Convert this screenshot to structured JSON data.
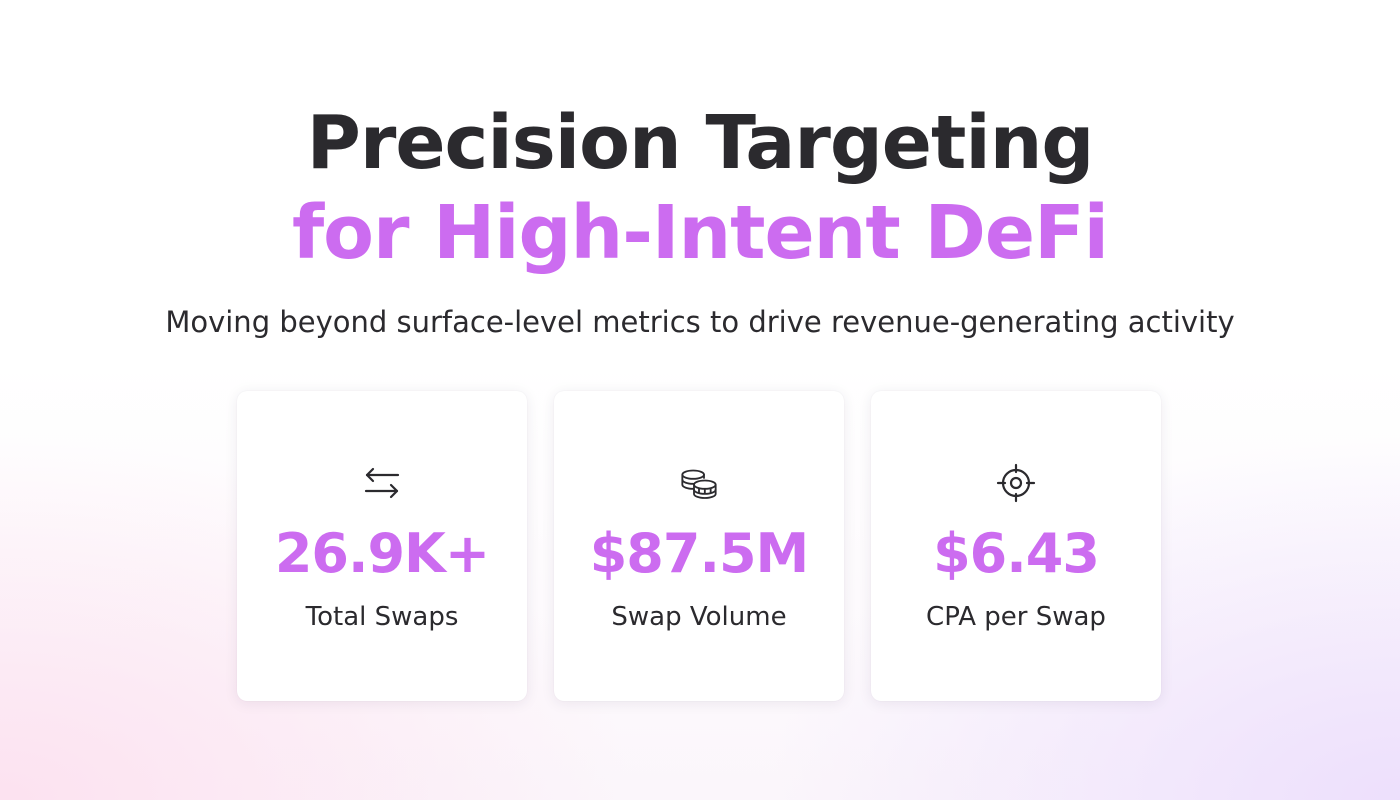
{
  "colors": {
    "accent": "#cc6cf0",
    "text_dark": "#2b2a2e",
    "card_background": "#ffffff"
  },
  "header": {
    "title_line_1": "Precision Targeting",
    "title_line_2": "for High-Intent DeFi",
    "subtitle": "Moving beyond surface-level metrics to drive revenue-generating activity"
  },
  "stats": [
    {
      "icon": "swap-arrows-icon",
      "value": "26.9K+",
      "label": "Total Swaps"
    },
    {
      "icon": "coins-icon",
      "value": "$87.5M",
      "label": "Swap Volume"
    },
    {
      "icon": "crosshair-target-icon",
      "value": "$6.43",
      "label": "CPA per Swap"
    }
  ]
}
